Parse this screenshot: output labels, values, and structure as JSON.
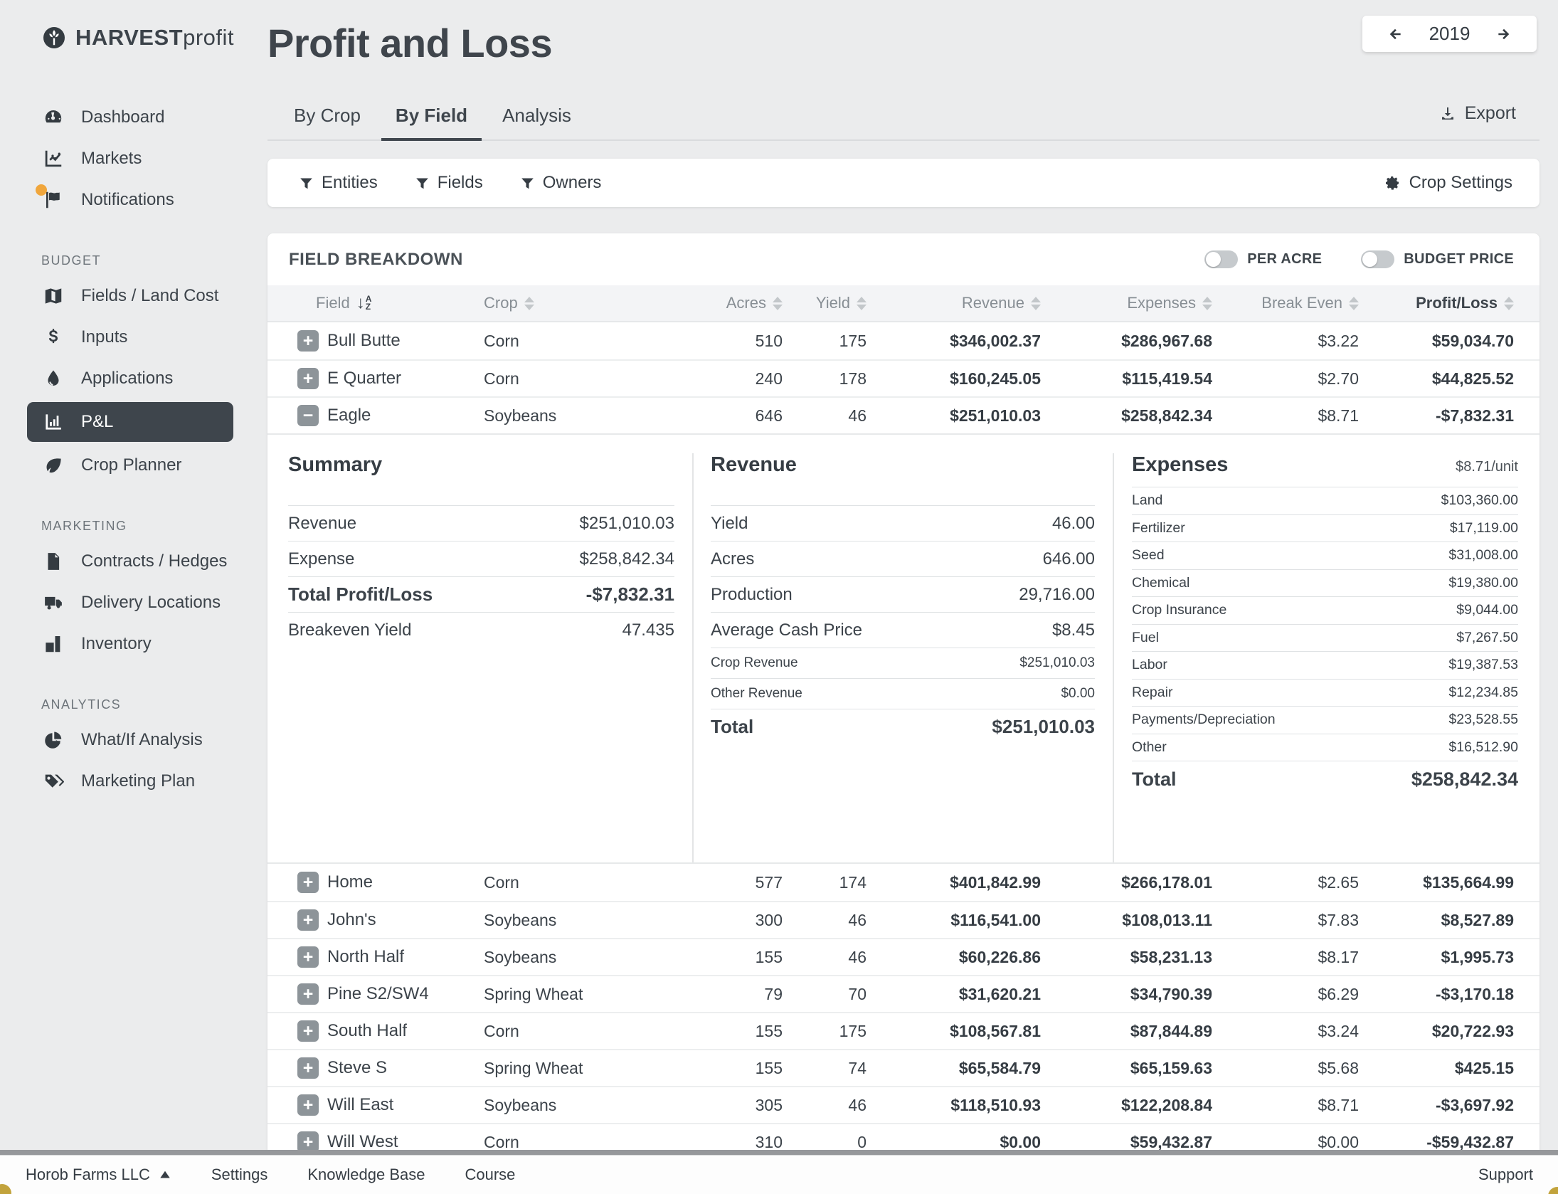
{
  "brand": {
    "name_bold": "HARVEST",
    "name_light": "profit"
  },
  "page": {
    "title": "Profit and Loss",
    "year": "2019",
    "export_label": "Export"
  },
  "tabs": [
    {
      "label": "By Crop",
      "active": false
    },
    {
      "label": "By Field",
      "active": true
    },
    {
      "label": "Analysis",
      "active": false
    }
  ],
  "filters": {
    "items": [
      {
        "label": "Entities"
      },
      {
        "label": "Fields"
      },
      {
        "label": "Owners"
      }
    ],
    "crop_settings_label": "Crop Settings"
  },
  "sidebar": {
    "sections": [
      {
        "label": "",
        "items": [
          {
            "label": "Dashboard",
            "icon": "dashboard"
          },
          {
            "label": "Markets",
            "icon": "markets"
          },
          {
            "label": "Notifications",
            "icon": "flag",
            "badge": true
          }
        ]
      },
      {
        "label": "BUDGET",
        "items": [
          {
            "label": "Fields / Land Cost",
            "icon": "map"
          },
          {
            "label": "Inputs",
            "icon": "dollar"
          },
          {
            "label": "Applications",
            "icon": "droplet"
          },
          {
            "label": "P&L",
            "icon": "barchart",
            "active": true
          },
          {
            "label": "Crop Planner",
            "icon": "leaf"
          }
        ]
      },
      {
        "label": "MARKETING",
        "items": [
          {
            "label": "Contracts / Hedges",
            "icon": "contract"
          },
          {
            "label": "Delivery Locations",
            "icon": "truck"
          },
          {
            "label": "Inventory",
            "icon": "warehouse"
          }
        ]
      },
      {
        "label": "ANALYTICS",
        "items": [
          {
            "label": "What/If Analysis",
            "icon": "pie"
          },
          {
            "label": "Marketing Plan",
            "icon": "tags"
          }
        ]
      }
    ]
  },
  "breakdown": {
    "title": "FIELD BREAKDOWN",
    "toggles": [
      {
        "label": "PER ACRE",
        "on": false
      },
      {
        "label": "BUDGET PRICE",
        "on": false
      }
    ],
    "columns": [
      {
        "label": "Field",
        "sort": "az"
      },
      {
        "label": "Crop"
      },
      {
        "label": "Acres"
      },
      {
        "label": "Yield"
      },
      {
        "label": "Revenue"
      },
      {
        "label": "Expenses"
      },
      {
        "label": "Break Even"
      },
      {
        "label": "Profit/Loss",
        "bold": true
      }
    ],
    "rows_top": [
      {
        "icon": "plus",
        "field": "Bull Butte",
        "crop": "Corn",
        "acres": "510",
        "yield": "175",
        "revenue": "$346,002.37",
        "expenses": "$286,967.68",
        "break_even": "$3.22",
        "profit_loss": "$59,034.70"
      },
      {
        "icon": "plus",
        "field": "E Quarter",
        "crop": "Corn",
        "acres": "240",
        "yield": "178",
        "revenue": "$160,245.05",
        "expenses": "$115,419.54",
        "break_even": "$2.70",
        "profit_loss": "$44,825.52"
      },
      {
        "icon": "minus",
        "field": "Eagle",
        "crop": "Soybeans",
        "acres": "646",
        "yield": "46",
        "revenue": "$251,010.03",
        "expenses": "$258,842.34",
        "break_even": "$8.71",
        "profit_loss": "-$7,832.31"
      }
    ],
    "rows_bottom": [
      {
        "icon": "plus",
        "field": "Home",
        "crop": "Corn",
        "acres": "577",
        "yield": "174",
        "revenue": "$401,842.99",
        "expenses": "$266,178.01",
        "break_even": "$2.65",
        "profit_loss": "$135,664.99"
      },
      {
        "icon": "plus",
        "field": "John's",
        "crop": "Soybeans",
        "acres": "300",
        "yield": "46",
        "revenue": "$116,541.00",
        "expenses": "$108,013.11",
        "break_even": "$7.83",
        "profit_loss": "$8,527.89"
      },
      {
        "icon": "plus",
        "field": "North Half",
        "crop": "Soybeans",
        "acres": "155",
        "yield": "46",
        "revenue": "$60,226.86",
        "expenses": "$58,231.13",
        "break_even": "$8.17",
        "profit_loss": "$1,995.73"
      },
      {
        "icon": "plus",
        "field": "Pine S2/SW4",
        "crop": "Spring Wheat",
        "acres": "79",
        "yield": "70",
        "revenue": "$31,620.21",
        "expenses": "$34,790.39",
        "break_even": "$6.29",
        "profit_loss": "-$3,170.18"
      },
      {
        "icon": "plus",
        "field": "South Half",
        "crop": "Corn",
        "acres": "155",
        "yield": "175",
        "revenue": "$108,567.81",
        "expenses": "$87,844.89",
        "break_even": "$3.24",
        "profit_loss": "$20,722.93"
      },
      {
        "icon": "plus",
        "field": "Steve S",
        "crop": "Spring Wheat",
        "acres": "155",
        "yield": "74",
        "revenue": "$65,584.79",
        "expenses": "$65,159.63",
        "break_even": "$5.68",
        "profit_loss": "$425.15"
      },
      {
        "icon": "plus",
        "field": "Will East",
        "crop": "Soybeans",
        "acres": "305",
        "yield": "46",
        "revenue": "$118,510.93",
        "expenses": "$122,208.84",
        "break_even": "$8.71",
        "profit_loss": "-$3,697.92"
      },
      {
        "icon": "plus",
        "field": "Will West",
        "crop": "Corn",
        "acres": "310",
        "yield": "0",
        "revenue": "$0.00",
        "expenses": "$59,432.87",
        "break_even": "$0.00",
        "profit_loss": "-$59,432.87"
      }
    ]
  },
  "detail": {
    "summary": {
      "title": "Summary",
      "rows": [
        {
          "label": "Revenue",
          "value": "$251,010.03"
        },
        {
          "label": "Expense",
          "value": "$258,842.34"
        },
        {
          "label": "Total Profit/Loss",
          "value": "-$7,832.31",
          "bold": true
        },
        {
          "label": "Breakeven Yield",
          "value": "47.435"
        }
      ]
    },
    "revenue": {
      "title": "Revenue",
      "rows": [
        {
          "label": "Yield",
          "value": "46.00"
        },
        {
          "label": "Acres",
          "value": "646.00"
        },
        {
          "label": "Production",
          "value": "29,716.00"
        },
        {
          "label": "Average Cash Price",
          "value": "$8.45"
        },
        {
          "label": "Crop Revenue",
          "value": "$251,010.03",
          "small": true
        },
        {
          "label": "Other Revenue",
          "value": "$0.00",
          "small": true
        },
        {
          "label": "Total",
          "value": "$251,010.03",
          "bold": true
        }
      ]
    },
    "expenses": {
      "title": "Expenses",
      "per_unit": "$8.71/unit",
      "rows": [
        {
          "label": "Land",
          "value": "$103,360.00"
        },
        {
          "label": "Fertilizer",
          "value": "$17,119.00"
        },
        {
          "label": "Seed",
          "value": "$31,008.00"
        },
        {
          "label": "Chemical",
          "value": "$19,380.00"
        },
        {
          "label": "Crop Insurance",
          "value": "$9,044.00"
        },
        {
          "label": "Fuel",
          "value": "$7,267.50"
        },
        {
          "label": "Labor",
          "value": "$19,387.53"
        },
        {
          "label": "Repair",
          "value": "$12,234.85"
        },
        {
          "label": "Payments/Depreciation",
          "value": "$23,528.55"
        },
        {
          "label": "Other",
          "value": "$16,512.90"
        },
        {
          "label": "Total",
          "value": "$258,842.34",
          "bold": true
        }
      ]
    }
  },
  "footer": {
    "left": [
      {
        "label": "Horob Farms LLC",
        "caret": true
      },
      {
        "label": "Settings"
      },
      {
        "label": "Knowledge Base"
      },
      {
        "label": "Course"
      }
    ],
    "right": "Support"
  },
  "colors": {
    "accent_orange": "#F0A63C",
    "dark": "#3E454C",
    "toggle_off": "#C6CACD"
  }
}
